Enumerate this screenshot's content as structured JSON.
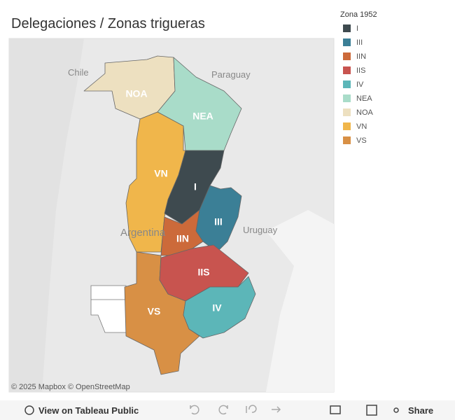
{
  "header": {
    "title": "Delegaciones / Zonas trigueras"
  },
  "legend": {
    "title": "Zona 1952",
    "items": [
      {
        "label": "I",
        "color": "#3e4a4f"
      },
      {
        "label": "III",
        "color": "#3b7f96"
      },
      {
        "label": "IIN",
        "color": "#cc6a3a"
      },
      {
        "label": "IIS",
        "color": "#c8544f"
      },
      {
        "label": "IV",
        "color": "#5cb6b8"
      },
      {
        "label": "NEA",
        "color": "#a9dcc9"
      },
      {
        "label": "NOA",
        "color": "#ede0c0"
      },
      {
        "label": "VN",
        "color": "#f0b64b"
      },
      {
        "label": "VS",
        "color": "#d89045"
      }
    ]
  },
  "map": {
    "countries": [
      "Chile",
      "Paraguay",
      "Argentina",
      "Uruguay"
    ],
    "attribution": "© 2025 Mapbox  © OpenStreetMap"
  },
  "toolbar": {
    "view": "View on Tableau Public",
    "share": "Share"
  }
}
